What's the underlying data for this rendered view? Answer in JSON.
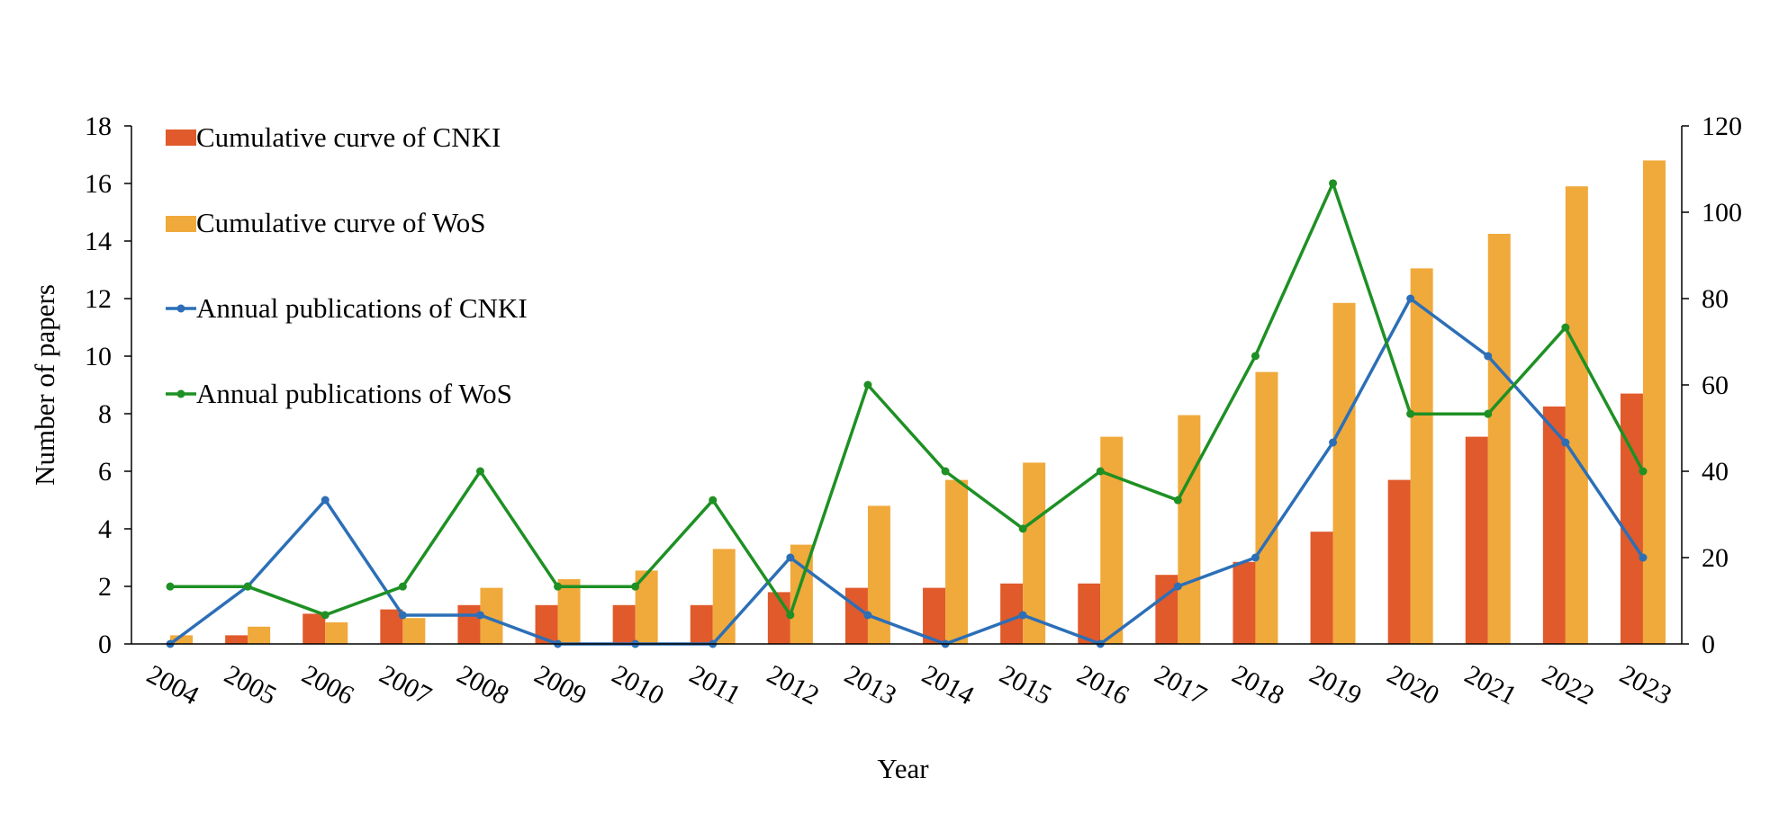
{
  "chart_data": {
    "type": "bar",
    "categories": [
      "2004",
      "2005",
      "2006",
      "2007",
      "2008",
      "2009",
      "2010",
      "2011",
      "2012",
      "2013",
      "2014",
      "2015",
      "2016",
      "2017",
      "2018",
      "2019",
      "2020",
      "2021",
      "2022",
      "2023"
    ],
    "series": [
      {
        "name": "Cumulative curve of CNKI",
        "kind": "bar",
        "axis": "left",
        "color": "#e05a2b",
        "values": [
          0,
          0.3,
          1.05,
          1.2,
          1.35,
          1.35,
          1.35,
          1.35,
          1.8,
          1.95,
          1.95,
          2.1,
          2.1,
          2.4,
          2.85,
          3.9,
          5.7,
          7.2,
          8.25,
          8.7
        ]
      },
      {
        "name": "Cumulative curve of WoS",
        "kind": "bar",
        "axis": "left",
        "color": "#f0a93b",
        "values": [
          0.3,
          0.6,
          0.75,
          0.9,
          1.95,
          2.25,
          2.55,
          3.3,
          3.45,
          4.8,
          5.7,
          6.3,
          7.2,
          7.95,
          9.45,
          11.85,
          13.05,
          14.25,
          15.9,
          16.8
        ]
      },
      {
        "name": "Annual publications of CNKI",
        "kind": "line",
        "axis": "left",
        "color": "#2c6fb7",
        "values": [
          0,
          2,
          5,
          1,
          1,
          0,
          0,
          0,
          3,
          1,
          0,
          1,
          0,
          2,
          3,
          7,
          12,
          10,
          7,
          3
        ]
      },
      {
        "name": "Annual publications of WoS",
        "kind": "line",
        "axis": "right",
        "color": "#1e9024",
        "values": [
          13.3,
          13.3,
          6.7,
          13.3,
          40,
          13.3,
          13.3,
          33.3,
          6.7,
          60,
          40,
          26.7,
          40,
          33.3,
          66.7,
          106.7,
          53.3,
          53.3,
          73.3,
          40
        ]
      }
    ],
    "xlabel": "Year",
    "ylabel": "Number of papers",
    "ylim": [
      0,
      18
    ],
    "y_ticks": [
      "0",
      "2",
      "4",
      "6",
      "8",
      "10",
      "12",
      "14",
      "16",
      "18"
    ],
    "y2lim": [
      0,
      120
    ],
    "y2_ticks": [
      "0",
      "20",
      "40",
      "60",
      "80",
      "100",
      "120"
    ],
    "grid": false,
    "legend_position": "top-left"
  }
}
